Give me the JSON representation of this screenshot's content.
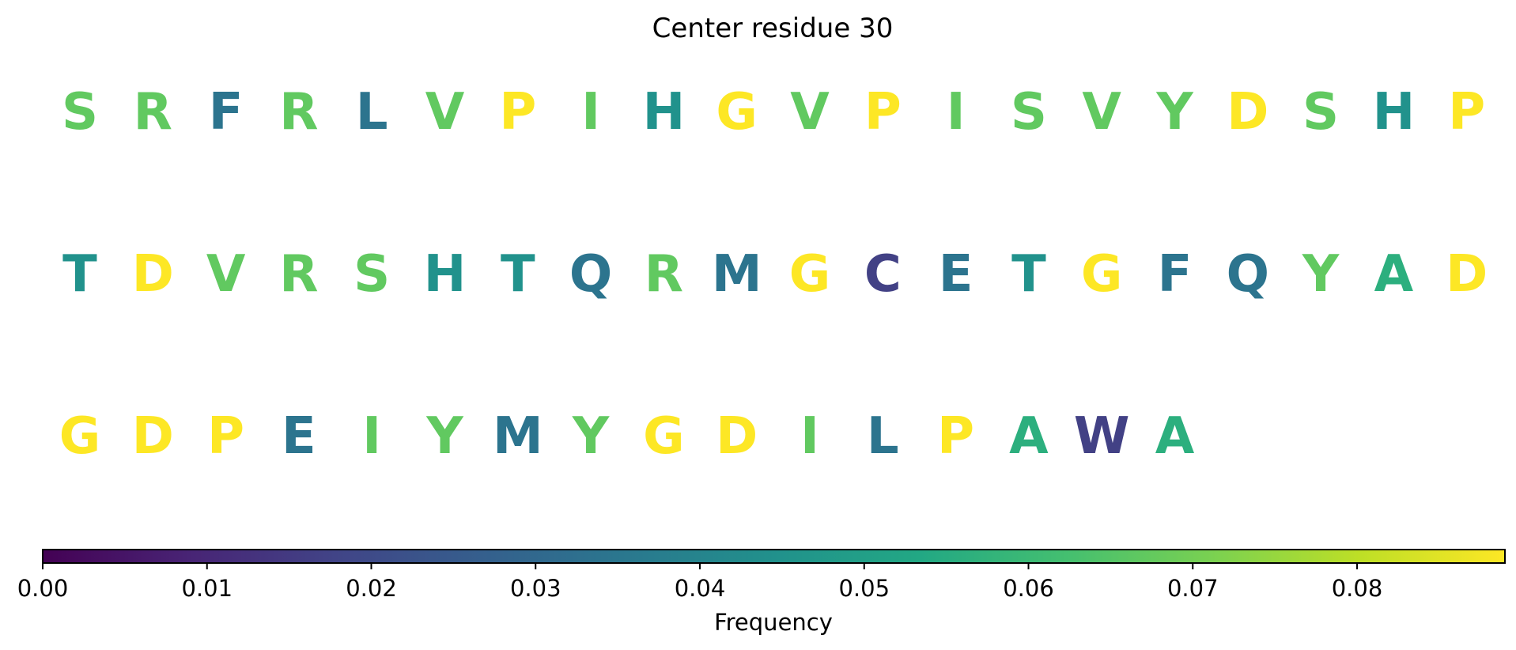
{
  "chart_data": {
    "type": "heatmap",
    "title": "Center residue 30",
    "colorbar": {
      "label": "Frequency",
      "min": 0.0,
      "max": 0.089,
      "ticks": [
        "0.00",
        "0.01",
        "0.02",
        "0.03",
        "0.04",
        "0.05",
        "0.06",
        "0.07",
        "0.08"
      ],
      "tick_values": [
        0.0,
        0.01,
        0.02,
        0.03,
        0.04,
        0.05,
        0.06,
        0.07,
        0.08
      ],
      "colormap": "viridis",
      "orientation": "horizontal"
    },
    "rows": [
      [
        {
          "residue": "S",
          "frequency": 0.067
        },
        {
          "residue": "R",
          "frequency": 0.067
        },
        {
          "residue": "F",
          "frequency": 0.034
        },
        {
          "residue": "R",
          "frequency": 0.067
        },
        {
          "residue": "L",
          "frequency": 0.034
        },
        {
          "residue": "V",
          "frequency": 0.067
        },
        {
          "residue": "P",
          "frequency": 0.089
        },
        {
          "residue": "I",
          "frequency": 0.067
        },
        {
          "residue": "H",
          "frequency": 0.045
        },
        {
          "residue": "G",
          "frequency": 0.089
        },
        {
          "residue": "V",
          "frequency": 0.067
        },
        {
          "residue": "P",
          "frequency": 0.089
        },
        {
          "residue": "I",
          "frequency": 0.067
        },
        {
          "residue": "S",
          "frequency": 0.067
        },
        {
          "residue": "V",
          "frequency": 0.067
        },
        {
          "residue": "Y",
          "frequency": 0.067
        },
        {
          "residue": "D",
          "frequency": 0.089
        },
        {
          "residue": "S",
          "frequency": 0.067
        },
        {
          "residue": "H",
          "frequency": 0.045
        },
        {
          "residue": "P",
          "frequency": 0.089
        }
      ],
      [
        {
          "residue": "T",
          "frequency": 0.045
        },
        {
          "residue": "D",
          "frequency": 0.089
        },
        {
          "residue": "V",
          "frequency": 0.067
        },
        {
          "residue": "R",
          "frequency": 0.067
        },
        {
          "residue": "S",
          "frequency": 0.067
        },
        {
          "residue": "H",
          "frequency": 0.045
        },
        {
          "residue": "T",
          "frequency": 0.045
        },
        {
          "residue": "Q",
          "frequency": 0.034
        },
        {
          "residue": "R",
          "frequency": 0.067
        },
        {
          "residue": "M",
          "frequency": 0.034
        },
        {
          "residue": "G",
          "frequency": 0.089
        },
        {
          "residue": "C",
          "frequency": 0.017
        },
        {
          "residue": "E",
          "frequency": 0.034
        },
        {
          "residue": "T",
          "frequency": 0.045
        },
        {
          "residue": "G",
          "frequency": 0.089
        },
        {
          "residue": "F",
          "frequency": 0.034
        },
        {
          "residue": "Q",
          "frequency": 0.034
        },
        {
          "residue": "Y",
          "frequency": 0.067
        },
        {
          "residue": "A",
          "frequency": 0.056
        },
        {
          "residue": "D",
          "frequency": 0.089
        }
      ],
      [
        {
          "residue": "G",
          "frequency": 0.089
        },
        {
          "residue": "D",
          "frequency": 0.089
        },
        {
          "residue": "P",
          "frequency": 0.089
        },
        {
          "residue": "E",
          "frequency": 0.034
        },
        {
          "residue": "I",
          "frequency": 0.067
        },
        {
          "residue": "Y",
          "frequency": 0.067
        },
        {
          "residue": "M",
          "frequency": 0.034
        },
        {
          "residue": "Y",
          "frequency": 0.067
        },
        {
          "residue": "G",
          "frequency": 0.089
        },
        {
          "residue": "D",
          "frequency": 0.089
        },
        {
          "residue": "I",
          "frequency": 0.067
        },
        {
          "residue": "L",
          "frequency": 0.034
        },
        {
          "residue": "P",
          "frequency": 0.089
        },
        {
          "residue": "A",
          "frequency": 0.056
        },
        {
          "residue": "W",
          "frequency": 0.017
        },
        {
          "residue": "A",
          "frequency": 0.056
        }
      ]
    ]
  }
}
